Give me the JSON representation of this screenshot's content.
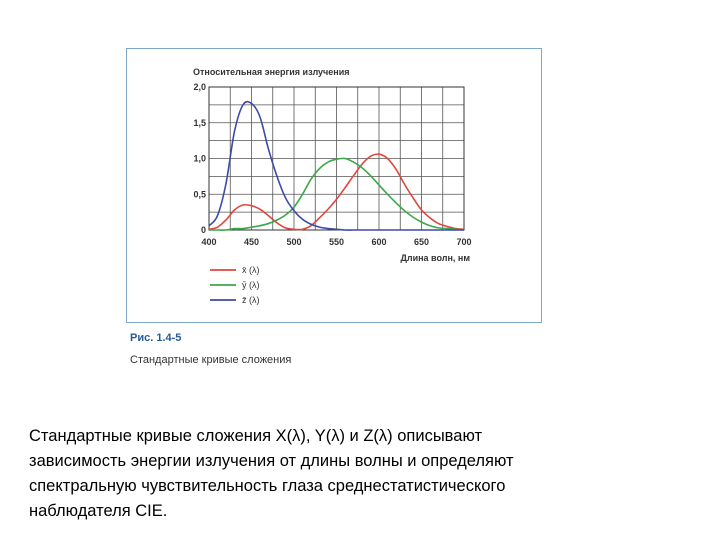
{
  "figure": {
    "number": "Рис. 1.4-5",
    "caption": "Стандартные кривые сложения"
  },
  "description_lines": [
    "Стандартные кривые сложения X(λ), Y(λ) и Z(λ) описывают",
    "зависимость энергии излучения от длины волны и определяют",
    "спектральную чувствительность глаза среднестатистического",
    "наблюдателя CIE."
  ],
  "chart_data": {
    "type": "line",
    "title": "",
    "ylabel": "Относительная энергия излучения",
    "xlabel": "Длина волн, нм",
    "xlim": [
      400,
      700
    ],
    "ylim": [
      0,
      2.0
    ],
    "x_ticks": [
      400,
      450,
      500,
      550,
      600,
      650,
      700
    ],
    "x_tick_labels": [
      "400",
      "450",
      "500",
      "550",
      "600",
      "650",
      "700"
    ],
    "y_ticks": [
      0,
      0.5,
      1.0,
      1.5,
      2.0
    ],
    "y_tick_labels": [
      "0",
      "0,5",
      "1,0",
      "1,5",
      "2,0"
    ],
    "grid": true,
    "legend_position": "bottom-left",
    "x": [
      400,
      410,
      420,
      430,
      440,
      450,
      460,
      470,
      480,
      490,
      500,
      510,
      520,
      530,
      540,
      550,
      560,
      570,
      580,
      590,
      600,
      610,
      620,
      630,
      640,
      650,
      660,
      670,
      680,
      690,
      700
    ],
    "series": [
      {
        "name": "x̄ (λ)",
        "color": "#e0463c",
        "values": [
          0.01,
          0.04,
          0.14,
          0.28,
          0.35,
          0.34,
          0.29,
          0.2,
          0.1,
          0.03,
          0.01,
          0.01,
          0.06,
          0.17,
          0.29,
          0.43,
          0.59,
          0.76,
          0.92,
          1.03,
          1.06,
          1.0,
          0.85,
          0.64,
          0.45,
          0.28,
          0.17,
          0.09,
          0.05,
          0.02,
          0.01
        ]
      },
      {
        "name": "ȳ (λ)",
        "color": "#3aa84a",
        "values": [
          0.0,
          0.0,
          0.0,
          0.02,
          0.02,
          0.04,
          0.06,
          0.09,
          0.14,
          0.21,
          0.32,
          0.5,
          0.71,
          0.86,
          0.95,
          0.99,
          1.0,
          0.95,
          0.87,
          0.76,
          0.63,
          0.5,
          0.38,
          0.27,
          0.18,
          0.11,
          0.06,
          0.03,
          0.02,
          0.01,
          0.0
        ]
      },
      {
        "name": "z̄ (λ)",
        "color": "#3c4aa8",
        "values": [
          0.06,
          0.2,
          0.65,
          1.38,
          1.75,
          1.77,
          1.58,
          1.13,
          0.75,
          0.45,
          0.27,
          0.15,
          0.08,
          0.04,
          0.02,
          0.01,
          0.0,
          0.0,
          0.0,
          0.0,
          0.0,
          0.0,
          0.0,
          0.0,
          0.0,
          0.0,
          0.0,
          0.0,
          0.0,
          0.0,
          0.0
        ]
      }
    ]
  }
}
